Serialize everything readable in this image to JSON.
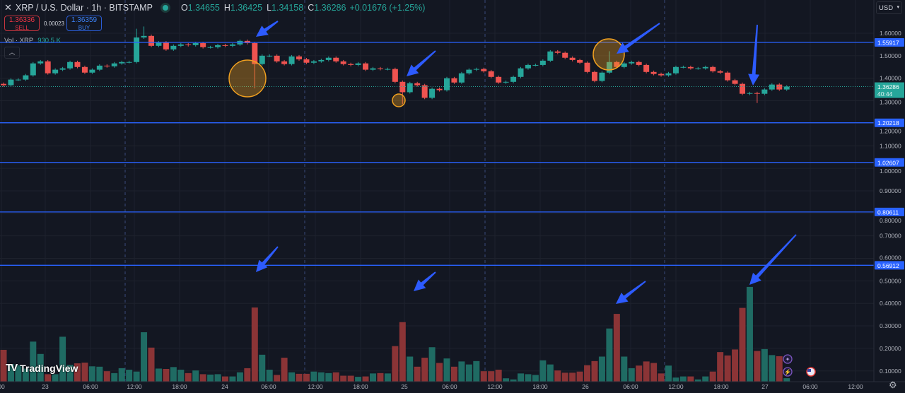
{
  "header": {
    "close_icon": "close-icon",
    "title": "XRP / U.S. Dollar · 1h · BITSTAMP",
    "market_status": "open",
    "ohlc": [
      {
        "label": "O",
        "value": "1.34655"
      },
      {
        "label": "H",
        "value": "1.36425"
      },
      {
        "label": "L",
        "value": "1.34158"
      },
      {
        "label": "C",
        "value": "1.36286"
      }
    ],
    "change": "+0.01676 (+1.25%)"
  },
  "trade": {
    "sell_price": "1.36336",
    "sell_label": "SELL",
    "spread": "0.00023",
    "buy_price": "1.36359",
    "buy_label": "BUY"
  },
  "volume_legend": {
    "label": "Vol · XRP",
    "value": "930.5 K"
  },
  "collapse_icon": "chevron-up-icon",
  "currency": "USD",
  "logo": "TradingView",
  "price_axis": {
    "ticks": [
      "1.60000",
      "1.50000",
      "1.40000",
      "1.30000",
      "1.20000",
      "1.10000",
      "1.00000",
      "0.90000",
      "0.80000",
      "0.70000",
      "0.60000",
      "0.50000",
      "0.40000",
      "0.30000",
      "0.20000",
      "0.10000"
    ],
    "current_price": "1.36286",
    "countdown": "40:44"
  },
  "time_axis": [
    "00",
    "23",
    "06:00",
    "12:00",
    "18:00",
    "24",
    "06:00",
    "12:00",
    "18:00",
    "25",
    "06:00",
    "12:00",
    "18:00",
    "26",
    "06:00",
    "12:00",
    "18:00",
    "27",
    "06:00",
    "12:00"
  ],
  "horizontal_lines": [
    "1.55917",
    "1.20218",
    "1.02607",
    "0.80611",
    "0.56912"
  ],
  "colors": {
    "background": "#131722",
    "up": "#26a69a",
    "down": "#ef5350",
    "vol_up": "#1f6b63",
    "vol_down": "#8b3436",
    "hline": "#2962ff",
    "annotation_arrow": "#2d5bff",
    "annotation_circle": "#f0a020"
  },
  "chart_data": {
    "type": "candlestick",
    "interval": "1h",
    "ylim": [
      0.08,
      1.65
    ],
    "first_open": 1.375,
    "close": [
      1.369,
      1.394,
      1.394,
      1.413,
      1.466,
      1.475,
      1.422,
      1.438,
      1.444,
      1.472,
      1.45,
      1.425,
      1.438,
      1.456,
      1.453,
      1.466,
      1.472,
      1.472,
      1.581,
      1.588,
      1.544,
      1.559,
      1.528,
      1.544,
      1.55,
      1.547,
      1.556,
      1.538,
      1.538,
      1.547,
      1.544,
      1.55,
      1.566,
      1.556,
      1.463,
      1.5,
      1.5,
      1.475,
      1.463,
      1.497,
      1.484,
      1.469,
      1.475,
      1.481,
      1.491,
      1.475,
      1.463,
      1.459,
      1.466,
      1.438,
      1.444,
      1.441,
      1.441,
      1.384,
      1.338,
      1.378,
      1.369,
      1.313,
      1.353,
      1.347,
      1.4,
      1.381,
      1.422,
      1.438,
      1.441,
      1.431,
      1.406,
      1.381,
      1.384,
      1.406,
      1.444,
      1.459,
      1.459,
      1.478,
      1.519,
      1.513,
      1.491,
      1.481,
      1.469,
      1.428,
      1.388,
      1.425,
      1.472,
      1.45,
      1.466,
      1.472,
      1.459,
      1.428,
      1.419,
      1.413,
      1.422,
      1.45,
      1.45,
      1.444,
      1.444,
      1.45,
      1.431,
      1.425,
      1.391,
      1.375,
      1.331,
      1.334,
      1.331,
      1.35,
      1.372,
      1.35,
      1.36286
    ],
    "extremes": [
      {
        "index": 18,
        "high": 1.62
      },
      {
        "index": 19,
        "high": 1.63
      },
      {
        "index": 34,
        "low": 1.355
      },
      {
        "index": 54,
        "low": 1.285
      },
      {
        "index": 82,
        "high": 1.52
      },
      {
        "index": 102,
        "low": 1.29
      }
    ],
    "volume_millions": [
      8.5,
      4.7,
      4.4,
      3.5,
      10.7,
      7.4,
      2.0,
      2.0,
      12.0,
      4.5,
      4.9,
      5.1,
      4.1,
      4.0,
      2.8,
      2.3,
      3.6,
      3.2,
      2.7,
      13.2,
      9.1,
      3.5,
      3.4,
      3.9,
      3.2,
      2.3,
      3.0,
      2.0,
      1.9,
      2.0,
      1.4,
      1.4,
      2.5,
      3.6,
      19.8,
      7.2,
      3.2,
      1.8,
      6.4,
      2.5,
      2.1,
      2.1,
      2.7,
      2.5,
      2.3,
      2.5,
      1.6,
      1.6,
      1.3,
      1.4,
      2.2,
      2.3,
      2.2,
      9.5,
      15.9,
      6.7,
      4.0,
      6.4,
      9.2,
      5.0,
      6.2,
      4.0,
      5.4,
      4.6,
      5.5,
      2.8,
      2.8,
      3.2,
      0.9,
      0.6,
      2.2,
      2.0,
      1.8,
      5.7,
      4.6,
      3.0,
      2.4,
      2.4,
      2.7,
      4.4,
      5.5,
      6.7,
      14.2,
      18.1,
      6.7,
      3.6,
      4.3,
      5.4,
      5.0,
      2.2,
      4.3,
      1.1,
      1.4,
      1.4,
      0.6,
      1.4,
      2.7,
      7.9,
      7.0,
      8.6,
      19.7,
      25.3,
      8.2,
      8.7,
      7.1,
      6.8,
      0.93
    ]
  }
}
